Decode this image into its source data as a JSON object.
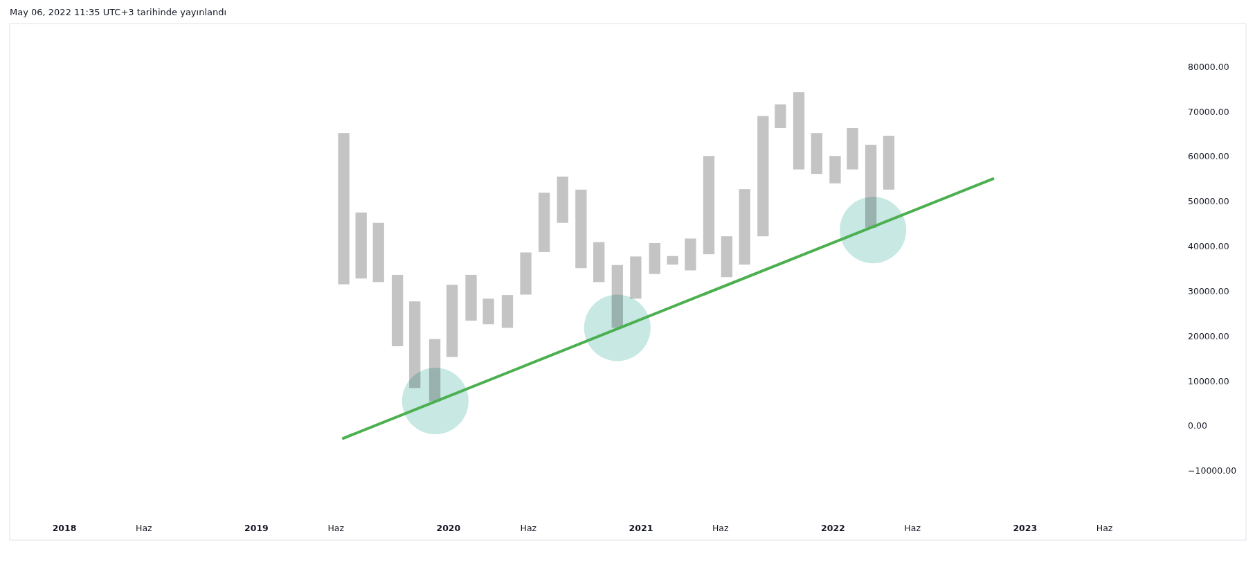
{
  "chart_data": {
    "type": "bar",
    "annotations": [
      "May 06, 2022 11:35 UTC+3 tarihinde yayınlandı"
    ],
    "xlim": [
      "2017-09-19",
      "2024-02-25"
    ],
    "xticks": [
      {
        "value": "2018-01-01",
        "label": "2018"
      },
      {
        "value": "2018-06-01",
        "label": "Haz"
      },
      {
        "value": "2019-01-01",
        "label": "2019"
      },
      {
        "value": "2019-06-01",
        "label": "Haz"
      },
      {
        "value": "2020-01-01",
        "label": "2020"
      },
      {
        "value": "2020-06-01",
        "label": "Haz"
      },
      {
        "value": "2021-01-01",
        "label": "2021"
      },
      {
        "value": "2021-06-01",
        "label": "Haz"
      },
      {
        "value": "2022-01-01",
        "label": "2022"
      },
      {
        "value": "2022-06-01",
        "label": "Haz"
      },
      {
        "value": "2023-01-01",
        "label": "2023"
      },
      {
        "value": "2023-06-01",
        "label": "Haz"
      }
    ],
    "ylim": [
      -25400,
      89700
    ],
    "yticks": [
      {
        "value": -10000,
        "label": "−10000.00"
      },
      {
        "value": 0,
        "label": "0.00"
      },
      {
        "value": 10000,
        "label": "10000.00"
      },
      {
        "value": 20000,
        "label": "20000.00"
      },
      {
        "value": 30000,
        "label": "30000.00"
      },
      {
        "value": 40000,
        "label": "40000.00"
      },
      {
        "value": 50000,
        "label": "50000.00"
      },
      {
        "value": 60000,
        "label": "60000.00"
      },
      {
        "value": 70000,
        "label": "70000.00"
      },
      {
        "value": 80000,
        "label": "80000.00"
      }
    ],
    "series": [
      {
        "color": "#c4c4c4",
        "x": [
          "2019-06-16",
          "2019-07-19",
          "2019-08-21",
          "2019-09-26",
          "2019-10-29",
          "2019-12-06",
          "2020-01-08",
          "2020-02-13",
          "2020-03-17",
          "2020-04-22",
          "2020-05-27",
          "2020-07-01",
          "2020-08-05",
          "2020-09-09",
          "2020-10-13",
          "2020-11-17",
          "2020-12-22",
          "2021-01-27",
          "2021-03-02",
          "2021-04-05",
          "2021-05-10",
          "2021-06-13",
          "2021-07-17",
          "2021-08-21",
          "2021-09-23",
          "2021-10-28",
          "2021-12-01",
          "2022-01-05",
          "2022-02-07",
          "2022-03-14",
          "2022-04-17"
        ],
        "base": [
          31600,
          32900,
          32100,
          17800,
          8500,
          5500,
          15400,
          23500,
          22700,
          21900,
          29300,
          38800,
          45300,
          35200,
          32100,
          21900,
          28400,
          33900,
          36000,
          34700,
          38300,
          33200,
          36000,
          42300,
          66400,
          57200,
          56200,
          54100,
          57200,
          44200,
          52700
        ],
        "values": [
          33700,
          14700,
          13200,
          15900,
          19300,
          13900,
          16100,
          10200,
          5700,
          7300,
          9400,
          13200,
          10300,
          17500,
          8900,
          14000,
          9400,
          6900,
          1900,
          7100,
          21900,
          9100,
          16800,
          26800,
          5300,
          17200,
          9100,
          6100,
          9200,
          18500,
          12000
        ]
      },
      {
        "type": "scatter",
        "color": "#c8e8e3",
        "marker": "circle",
        "x": [
          "2019-12-07",
          "2020-11-17",
          "2022-03-18"
        ],
        "values": [
          5600,
          21900,
          43700
        ]
      },
      {
        "type": "line",
        "color": "#4caf50",
        "x": [
          "2019-06-13",
          "2022-11-03"
        ],
        "values": [
          -2800,
          55200
        ]
      }
    ]
  }
}
